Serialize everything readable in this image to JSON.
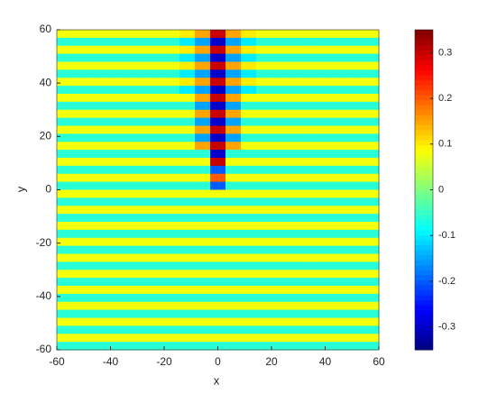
{
  "chart_data": {
    "type": "heatmap",
    "xlabel": "x",
    "ylabel": "y",
    "xlim": [
      -60,
      60
    ],
    "ylim": [
      -60,
      60
    ],
    "xticks": [
      -60,
      -40,
      -20,
      0,
      20,
      40,
      60
    ],
    "yticks": [
      -60,
      -40,
      -20,
      0,
      20,
      40,
      60
    ],
    "zlim": [
      -0.35,
      0.35
    ],
    "zticks": [
      -0.3,
      -0.2,
      -0.1,
      0,
      0.1,
      0.2,
      0.3
    ],
    "colormap": "jet",
    "z": [
      [
        0.08,
        0.08,
        0.08,
        0.08,
        0.08,
        0.08,
        0.08,
        0.08,
        0.1,
        0.15,
        0.3,
        0.15,
        0.1,
        0.08,
        0.08,
        0.08,
        0.08,
        0.08,
        0.08,
        0.08,
        0.08
      ],
      [
        -0.06,
        -0.06,
        -0.06,
        -0.06,
        -0.06,
        -0.06,
        -0.06,
        -0.06,
        -0.1,
        -0.15,
        -0.3,
        -0.15,
        -0.1,
        -0.06,
        -0.06,
        -0.06,
        -0.06,
        -0.06,
        -0.06,
        -0.06,
        -0.06
      ],
      [
        0.08,
        0.08,
        0.08,
        0.08,
        0.08,
        0.08,
        0.08,
        0.08,
        0.1,
        0.15,
        0.3,
        0.15,
        0.1,
        0.08,
        0.08,
        0.08,
        0.08,
        0.08,
        0.08,
        0.08,
        0.08
      ],
      [
        -0.06,
        -0.06,
        -0.06,
        -0.06,
        -0.06,
        -0.06,
        -0.06,
        -0.06,
        -0.1,
        -0.15,
        -0.3,
        -0.15,
        -0.1,
        -0.06,
        -0.06,
        -0.06,
        -0.06,
        -0.06,
        -0.06,
        -0.06,
        -0.06
      ],
      [
        0.08,
        0.08,
        0.08,
        0.08,
        0.08,
        0.08,
        0.08,
        0.08,
        0.1,
        0.15,
        0.3,
        0.15,
        0.1,
        0.08,
        0.08,
        0.08,
        0.08,
        0.08,
        0.08,
        0.08,
        0.08
      ],
      [
        -0.06,
        -0.06,
        -0.06,
        -0.06,
        -0.06,
        -0.06,
        -0.06,
        -0.06,
        -0.1,
        -0.15,
        -0.3,
        -0.15,
        -0.1,
        -0.06,
        -0.06,
        -0.06,
        -0.06,
        -0.06,
        -0.06,
        -0.06,
        -0.06
      ],
      [
        0.08,
        0.08,
        0.08,
        0.08,
        0.08,
        0.08,
        0.08,
        0.08,
        0.1,
        0.15,
        0.3,
        0.15,
        0.1,
        0.08,
        0.08,
        0.08,
        0.08,
        0.08,
        0.08,
        0.08,
        0.08
      ],
      [
        -0.06,
        -0.06,
        -0.06,
        -0.06,
        -0.06,
        -0.06,
        -0.06,
        -0.06,
        -0.1,
        -0.15,
        -0.3,
        -0.15,
        -0.1,
        -0.06,
        -0.06,
        -0.06,
        -0.06,
        -0.06,
        -0.06,
        -0.06,
        -0.06
      ],
      [
        0.08,
        0.08,
        0.08,
        0.08,
        0.08,
        0.08,
        0.08,
        0.08,
        0.08,
        0.15,
        0.3,
        0.15,
        0.08,
        0.08,
        0.08,
        0.08,
        0.08,
        0.08,
        0.08,
        0.08,
        0.08
      ],
      [
        -0.06,
        -0.06,
        -0.06,
        -0.06,
        -0.06,
        -0.06,
        -0.06,
        -0.06,
        -0.06,
        -0.15,
        -0.3,
        -0.15,
        -0.06,
        -0.06,
        -0.06,
        -0.06,
        -0.06,
        -0.06,
        -0.06,
        -0.06,
        -0.06
      ],
      [
        0.08,
        0.08,
        0.08,
        0.08,
        0.08,
        0.08,
        0.08,
        0.08,
        0.08,
        0.15,
        0.3,
        0.15,
        0.08,
        0.08,
        0.08,
        0.08,
        0.08,
        0.08,
        0.08,
        0.08,
        0.08
      ],
      [
        -0.06,
        -0.06,
        -0.06,
        -0.06,
        -0.06,
        -0.06,
        -0.06,
        -0.06,
        -0.06,
        -0.15,
        -0.3,
        -0.15,
        -0.06,
        -0.06,
        -0.06,
        -0.06,
        -0.06,
        -0.06,
        -0.06,
        -0.06,
        -0.06
      ],
      [
        0.08,
        0.08,
        0.08,
        0.08,
        0.08,
        0.08,
        0.08,
        0.08,
        0.08,
        0.15,
        0.3,
        0.15,
        0.08,
        0.08,
        0.08,
        0.08,
        0.08,
        0.08,
        0.08,
        0.08,
        0.08
      ],
      [
        -0.06,
        -0.06,
        -0.06,
        -0.06,
        -0.06,
        -0.06,
        -0.06,
        -0.06,
        -0.06,
        -0.15,
        -0.3,
        -0.15,
        -0.06,
        -0.06,
        -0.06,
        -0.06,
        -0.06,
        -0.06,
        -0.06,
        -0.06,
        -0.06
      ],
      [
        0.08,
        0.08,
        0.08,
        0.08,
        0.08,
        0.08,
        0.08,
        0.08,
        0.08,
        0.15,
        0.3,
        0.15,
        0.08,
        0.08,
        0.08,
        0.08,
        0.08,
        0.08,
        0.08,
        0.08,
        0.08
      ],
      [
        -0.06,
        -0.06,
        -0.06,
        -0.06,
        -0.06,
        -0.06,
        -0.06,
        -0.06,
        -0.06,
        -0.06,
        -0.3,
        -0.06,
        -0.06,
        -0.06,
        -0.06,
        -0.06,
        -0.06,
        -0.06,
        -0.06,
        -0.06,
        -0.06
      ],
      [
        0.08,
        0.08,
        0.08,
        0.08,
        0.08,
        0.08,
        0.08,
        0.08,
        0.08,
        0.08,
        0.3,
        0.08,
        0.08,
        0.08,
        0.08,
        0.08,
        0.08,
        0.08,
        0.08,
        0.08,
        0.08
      ],
      [
        -0.06,
        -0.06,
        -0.06,
        -0.06,
        -0.06,
        -0.06,
        -0.06,
        -0.06,
        -0.06,
        -0.06,
        -0.2,
        -0.06,
        -0.06,
        -0.06,
        -0.06,
        -0.06,
        -0.06,
        -0.06,
        -0.06,
        -0.06,
        -0.06
      ],
      [
        0.08,
        0.08,
        0.08,
        0.08,
        0.08,
        0.08,
        0.08,
        0.08,
        0.08,
        0.08,
        0.2,
        0.08,
        0.08,
        0.08,
        0.08,
        0.08,
        0.08,
        0.08,
        0.08,
        0.08,
        0.08
      ],
      [
        -0.06,
        -0.06,
        -0.06,
        -0.06,
        -0.06,
        -0.06,
        -0.06,
        -0.06,
        -0.06,
        -0.06,
        -0.2,
        -0.06,
        -0.06,
        -0.06,
        -0.06,
        -0.06,
        -0.06,
        -0.06,
        -0.06,
        -0.06,
        -0.06
      ],
      [
        0.08,
        0.08,
        0.08,
        0.08,
        0.08,
        0.08,
        0.08,
        0.08,
        0.08,
        0.08,
        0.08,
        0.08,
        0.08,
        0.08,
        0.08,
        0.08,
        0.08,
        0.08,
        0.08,
        0.08,
        0.08
      ],
      [
        -0.06,
        -0.06,
        -0.06,
        -0.06,
        -0.06,
        -0.06,
        -0.06,
        -0.06,
        -0.06,
        -0.06,
        -0.06,
        -0.06,
        -0.06,
        -0.06,
        -0.06,
        -0.06,
        -0.06,
        -0.06,
        -0.06,
        -0.06,
        -0.06
      ],
      [
        0.08,
        0.08,
        0.08,
        0.08,
        0.08,
        0.08,
        0.08,
        0.08,
        0.08,
        0.08,
        0.08,
        0.08,
        0.08,
        0.08,
        0.08,
        0.08,
        0.08,
        0.08,
        0.08,
        0.08,
        0.08
      ],
      [
        -0.06,
        -0.06,
        -0.06,
        -0.06,
        -0.06,
        -0.06,
        -0.06,
        -0.06,
        -0.06,
        -0.06,
        -0.06,
        -0.06,
        -0.06,
        -0.06,
        -0.06,
        -0.06,
        -0.06,
        -0.06,
        -0.06,
        -0.06,
        -0.06
      ],
      [
        0.08,
        0.08,
        0.08,
        0.08,
        0.08,
        0.08,
        0.08,
        0.08,
        0.08,
        0.08,
        0.08,
        0.08,
        0.08,
        0.08,
        0.08,
        0.08,
        0.08,
        0.08,
        0.08,
        0.08,
        0.08
      ],
      [
        -0.06,
        -0.06,
        -0.06,
        -0.06,
        -0.06,
        -0.06,
        -0.06,
        -0.06,
        -0.06,
        -0.06,
        -0.06,
        -0.06,
        -0.06,
        -0.06,
        -0.06,
        -0.06,
        -0.06,
        -0.06,
        -0.06,
        -0.06,
        -0.06
      ],
      [
        0.08,
        0.08,
        0.08,
        0.08,
        0.08,
        0.08,
        0.08,
        0.08,
        0.08,
        0.08,
        0.08,
        0.08,
        0.08,
        0.08,
        0.08,
        0.08,
        0.08,
        0.08,
        0.08,
        0.08,
        0.08
      ],
      [
        -0.06,
        -0.06,
        -0.06,
        -0.06,
        -0.06,
        -0.06,
        -0.06,
        -0.06,
        -0.06,
        -0.06,
        -0.06,
        -0.06,
        -0.06,
        -0.06,
        -0.06,
        -0.06,
        -0.06,
        -0.06,
        -0.06,
        -0.06,
        -0.06
      ],
      [
        0.08,
        0.08,
        0.08,
        0.08,
        0.08,
        0.08,
        0.08,
        0.08,
        0.08,
        0.08,
        0.08,
        0.08,
        0.08,
        0.08,
        0.08,
        0.08,
        0.08,
        0.08,
        0.08,
        0.08,
        0.08
      ],
      [
        -0.06,
        -0.06,
        -0.06,
        -0.06,
        -0.06,
        -0.06,
        -0.06,
        -0.06,
        -0.06,
        -0.06,
        -0.06,
        -0.06,
        -0.06,
        -0.06,
        -0.06,
        -0.06,
        -0.06,
        -0.06,
        -0.06,
        -0.06,
        -0.06
      ],
      [
        0.08,
        0.08,
        0.08,
        0.08,
        0.08,
        0.08,
        0.08,
        0.08,
        0.08,
        0.08,
        0.08,
        0.08,
        0.08,
        0.08,
        0.08,
        0.08,
        0.08,
        0.08,
        0.08,
        0.08,
        0.08
      ],
      [
        -0.06,
        -0.06,
        -0.06,
        -0.06,
        -0.06,
        -0.06,
        -0.06,
        -0.06,
        -0.06,
        -0.06,
        -0.06,
        -0.06,
        -0.06,
        -0.06,
        -0.06,
        -0.06,
        -0.06,
        -0.06,
        -0.06,
        -0.06,
        -0.06
      ],
      [
        0.08,
        0.08,
        0.08,
        0.08,
        0.08,
        0.08,
        0.08,
        0.08,
        0.08,
        0.08,
        0.08,
        0.08,
        0.08,
        0.08,
        0.08,
        0.08,
        0.08,
        0.08,
        0.08,
        0.08,
        0.08
      ],
      [
        -0.06,
        -0.06,
        -0.06,
        -0.06,
        -0.06,
        -0.06,
        -0.06,
        -0.06,
        -0.06,
        -0.06,
        -0.06,
        -0.06,
        -0.06,
        -0.06,
        -0.06,
        -0.06,
        -0.06,
        -0.06,
        -0.06,
        -0.06,
        -0.06
      ],
      [
        0.08,
        0.08,
        0.08,
        0.08,
        0.08,
        0.08,
        0.08,
        0.08,
        0.08,
        0.08,
        0.08,
        0.08,
        0.08,
        0.08,
        0.08,
        0.08,
        0.08,
        0.08,
        0.08,
        0.08,
        0.08
      ],
      [
        -0.06,
        -0.06,
        -0.06,
        -0.06,
        -0.06,
        -0.06,
        -0.06,
        -0.06,
        -0.06,
        -0.06,
        -0.06,
        -0.06,
        -0.06,
        -0.06,
        -0.06,
        -0.06,
        -0.06,
        -0.06,
        -0.06,
        -0.06,
        -0.06
      ],
      [
        0.08,
        0.08,
        0.08,
        0.08,
        0.08,
        0.08,
        0.08,
        0.08,
        0.08,
        0.08,
        0.08,
        0.08,
        0.08,
        0.08,
        0.08,
        0.08,
        0.08,
        0.08,
        0.08,
        0.08,
        0.08
      ],
      [
        -0.06,
        -0.06,
        -0.06,
        -0.06,
        -0.06,
        -0.06,
        -0.06,
        -0.06,
        -0.06,
        -0.06,
        -0.06,
        -0.06,
        -0.06,
        -0.06,
        -0.06,
        -0.06,
        -0.06,
        -0.06,
        -0.06,
        -0.06,
        -0.06
      ],
      [
        0.08,
        0.08,
        0.08,
        0.08,
        0.08,
        0.08,
        0.08,
        0.08,
        0.08,
        0.08,
        0.08,
        0.08,
        0.08,
        0.08,
        0.08,
        0.08,
        0.08,
        0.08,
        0.08,
        0.08,
        0.08
      ],
      [
        -0.06,
        -0.06,
        -0.06,
        -0.06,
        -0.06,
        -0.06,
        -0.06,
        -0.06,
        -0.06,
        -0.06,
        -0.06,
        -0.06,
        -0.06,
        -0.06,
        -0.06,
        -0.06,
        -0.06,
        -0.06,
        -0.06,
        -0.06,
        -0.06
      ]
    ]
  }
}
